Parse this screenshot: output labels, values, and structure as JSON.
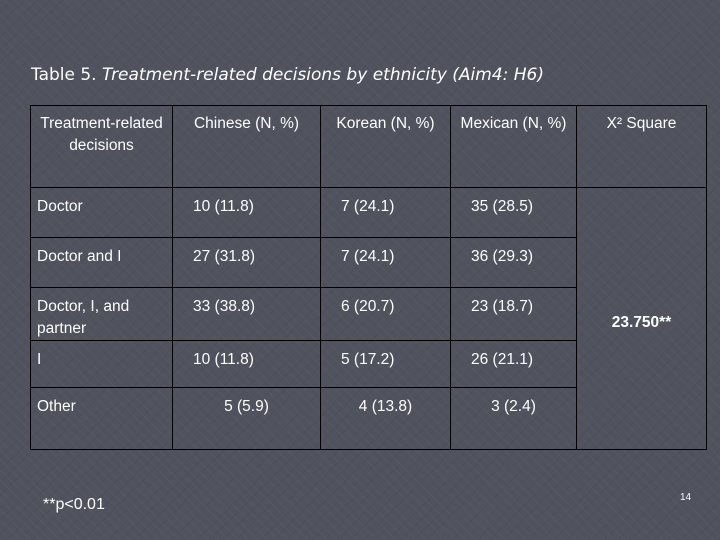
{
  "slide": {
    "title_prefix": "Table 5. ",
    "title_italic": "Treatment-related decisions by ethnicity (Aim4: H6)",
    "footnote": "**p<0.01",
    "page_number": "14"
  },
  "table": {
    "headers": [
      "Treatment-related decisions",
      "Chinese (N, %)",
      "Korean (N, %)",
      "Mexican (N, %)",
      "X² Square"
    ],
    "rows": [
      {
        "label": "Doctor",
        "chinese": "10 (11.8)",
        "korean": "7 (24.1)",
        "mexican": "35 (28.5)"
      },
      {
        "label": "Doctor and I",
        "chinese": "27 (31.8)",
        "korean": "7 (24.1)",
        "mexican": "36 (29.3)"
      },
      {
        "label": "Doctor, I, and partner",
        "chinese": "33 (38.8)",
        "korean": "6 (20.7)",
        "mexican": "23 (18.7)"
      },
      {
        "label": "I",
        "chinese": "10 (11.8)",
        "korean": "5 (17.2)",
        "mexican": "26 (21.1)"
      },
      {
        "label": "Other",
        "chinese": "5 (5.9)",
        "korean": "4 (13.8)",
        "mexican": "3 (2.4)"
      }
    ],
    "chi_square_value": "23.750**"
  }
}
